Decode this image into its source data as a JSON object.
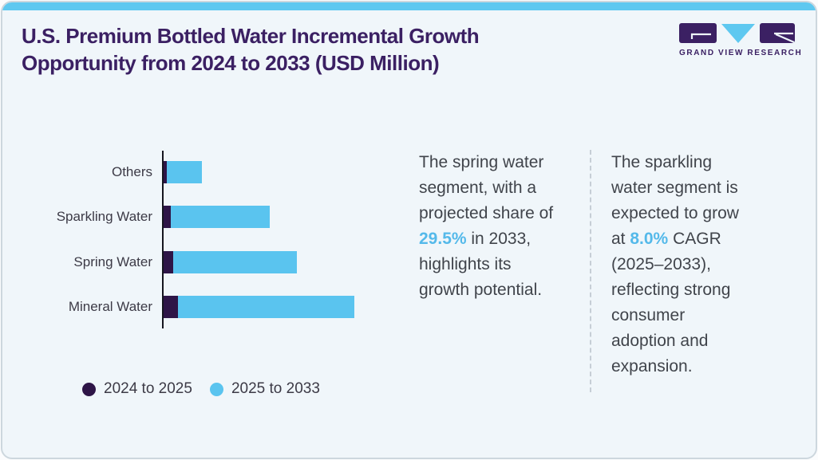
{
  "header": {
    "title": "U.S. Premium Bottled Water Incremental Growth\nOpportunity from 2024 to 2033 (USD Million)",
    "logo": {
      "brand": "GRAND VIEW RESEARCH"
    }
  },
  "colors": {
    "top_strip": "#5ec8f0",
    "title_purple": "#3b2063",
    "bar_purple": "#2e1547",
    "bar_blue": "#5ac4ef",
    "accent_blue": "#54b9ea",
    "body_text": "#40444b",
    "label_text": "#3c3a46"
  },
  "chart_data": {
    "type": "bar",
    "orientation": "horizontal",
    "stacked": true,
    "grid": false,
    "legend_position": "bottom-left",
    "value_axis_labels": "none (relative lengths, axis unlabeled)",
    "units": "relative, % of longest total bar (values estimated from bar lengths)",
    "categories": [
      "Others",
      "Sparkling Water",
      "Spring Water",
      "Mineral Water"
    ],
    "series": [
      {
        "name": "2024 to 2025",
        "color": "#2e1547",
        "values": [
          1.7,
          3.8,
          4.8,
          7.5
        ]
      },
      {
        "name": "2025 to 2033",
        "color": "#5ac4ef",
        "values": [
          18.5,
          52.0,
          65.0,
          92.5
        ]
      }
    ]
  },
  "callouts": [
    {
      "name": "spring-water-callout",
      "lines": [
        [
          {
            "t": "The spring water"
          }
        ],
        [
          {
            "t": "segment, with a"
          }
        ],
        [
          {
            "t": "projected share of"
          }
        ],
        [
          {
            "t": "29.5%",
            "accent": true
          },
          {
            "t": " in 2033,"
          }
        ],
        [
          {
            "t": "highlights its"
          }
        ],
        [
          {
            "t": "growth potential."
          }
        ]
      ]
    },
    {
      "name": "sparkling-water-callout",
      "lines": [
        [
          {
            "t": "The sparkling"
          }
        ],
        [
          {
            "t": "water segment is"
          }
        ],
        [
          {
            "t": "expected to grow"
          }
        ],
        [
          {
            "t": "at "
          },
          {
            "t": "8.0%",
            "accent": true
          },
          {
            "t": " CAGR"
          }
        ],
        [
          {
            "t": "(2025–2033),"
          }
        ],
        [
          {
            "t": "reflecting strong"
          }
        ],
        [
          {
            "t": "consumer"
          }
        ],
        [
          {
            "t": "adoption and"
          }
        ],
        [
          {
            "t": "expansion."
          }
        ]
      ]
    }
  ]
}
